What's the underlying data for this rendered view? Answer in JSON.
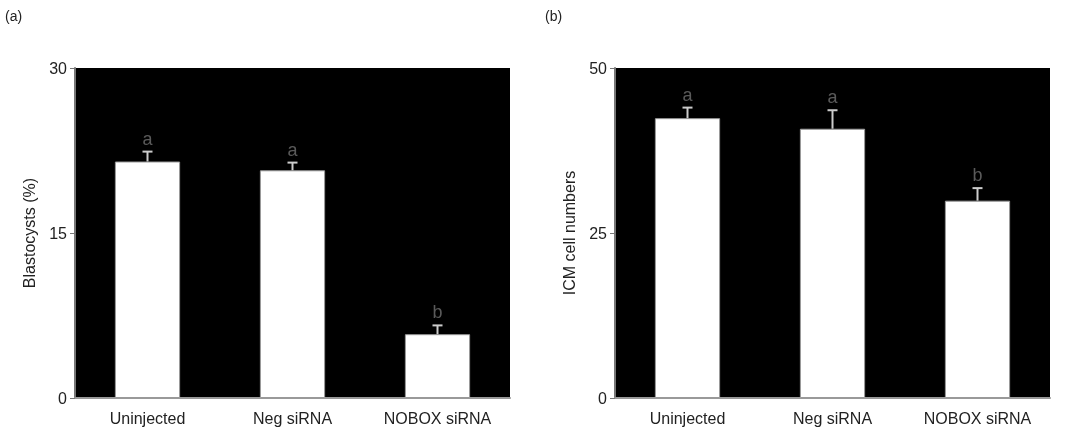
{
  "chart_data": [
    {
      "type": "bar",
      "title": "(a)",
      "categories": [
        "Uninjected",
        "Neg siRNA",
        "NOBOX siRNA"
      ],
      "values": [
        21.5,
        20.7,
        5.8
      ],
      "errors": [
        0.9,
        0.7,
        0.8
      ],
      "color": "#ffffff",
      "ylabel": "Blastocysts (%)",
      "ylim": [
        0,
        30
      ],
      "yticks": [
        0,
        15,
        30
      ],
      "grid": false,
      "annotations": [
        {
          "text": "a",
          "x": "Uninjected",
          "y": 22.4
        },
        {
          "text": "a",
          "x": "Neg siRNA",
          "y": 21.4
        },
        {
          "text": "b",
          "x": "NOBOX siRNA",
          "y": 6.6
        }
      ]
    },
    {
      "type": "bar",
      "title": "(b)",
      "categories": [
        "Uninjected",
        "Neg siRNA",
        "NOBOX siRNA"
      ],
      "values": [
        42.4,
        40.8,
        29.9
      ],
      "errors": [
        1.6,
        2.8,
        1.9
      ],
      "color": "#ffffff",
      "ylabel": "ICM cell numbers",
      "ylim": [
        0,
        50
      ],
      "yticks": [
        0,
        25,
        50
      ],
      "grid": false,
      "annotations": [
        {
          "text": "a",
          "x": "Uninjected",
          "y": 44.0
        },
        {
          "text": "a",
          "x": "Neg siRNA",
          "y": 43.6
        },
        {
          "text": "b",
          "x": "NOBOX siRNA",
          "y": 31.8
        }
      ]
    }
  ]
}
